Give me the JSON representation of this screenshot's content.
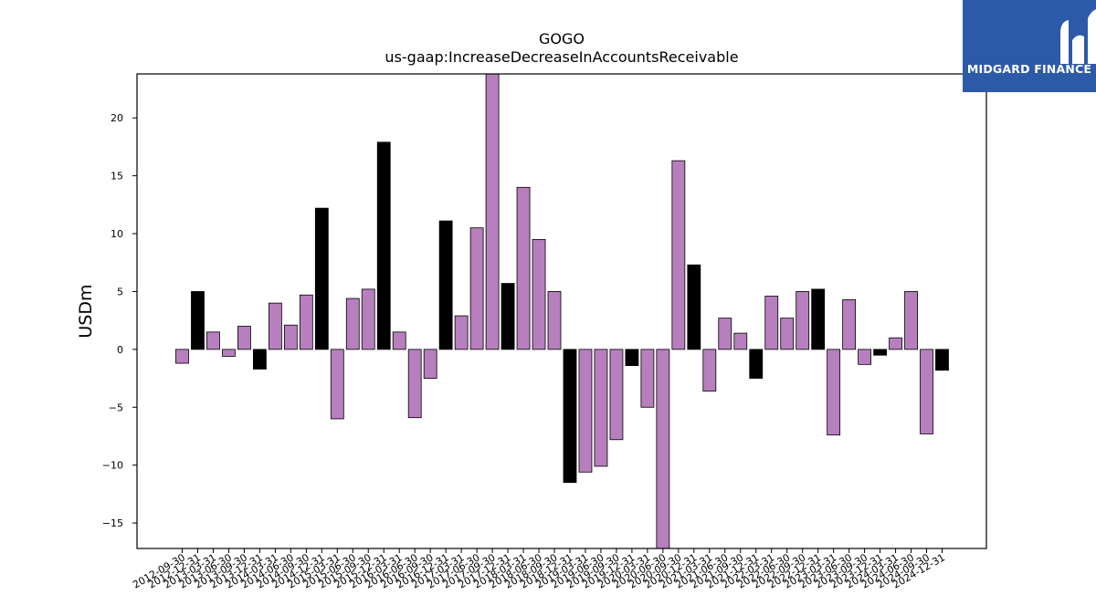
{
  "chart_data": {
    "type": "bar",
    "title": "GOGO",
    "subtitle": "us-gaap:IncreaseDecreaseInAccountsReceivable",
    "ylabel": "USDm",
    "xlabel": "",
    "ylim": [
      -17.2,
      23.8
    ],
    "yticks": [
      -15,
      -10,
      -5,
      0,
      5,
      10,
      15,
      20
    ],
    "grid": false,
    "categories": [
      "2012-09-30",
      "2012-12-31",
      "2013-03-31",
      "2013-06-30",
      "2013-09-30",
      "2013-12-31",
      "2014-03-31",
      "2014-06-30",
      "2014-09-30",
      "2014-12-31",
      "2015-03-31",
      "2015-06-30",
      "2015-09-30",
      "2015-12-31",
      "2016-03-31",
      "2016-06-30",
      "2016-09-30",
      "2016-12-31",
      "2017-03-31",
      "2017-06-30",
      "2017-09-30",
      "2017-12-31",
      "2018-03-31",
      "2018-06-30",
      "2018-09-30",
      "2018-12-31",
      "2019-03-31",
      "2019-06-30",
      "2019-09-30",
      "2019-12-31",
      "2020-03-31",
      "2020-06-30",
      "2020-09-30",
      "2020-12-31",
      "2021-03-31",
      "2021-06-30",
      "2021-09-30",
      "2021-12-31",
      "2022-03-31",
      "2022-06-30",
      "2022-09-30",
      "2022-12-31",
      "2023-03-31",
      "2023-06-30",
      "2023-09-30",
      "2023-12-31",
      "2024-03-31",
      "2024-06-30",
      "2024-09-30",
      "2024-12-31"
    ],
    "values": [
      -1.2,
      5.0,
      1.5,
      -0.6,
      2.0,
      -1.7,
      4.0,
      2.1,
      4.7,
      12.2,
      -6.0,
      4.4,
      5.2,
      17.9,
      1.5,
      -5.9,
      -2.5,
      11.1,
      2.9,
      10.5,
      23.8,
      5.7,
      14.0,
      9.5,
      5.0,
      -11.5,
      -10.6,
      -10.1,
      -7.8,
      -1.4,
      -5.0,
      -17.2,
      16.3,
      7.3,
      -3.6,
      2.7,
      1.4,
      -2.5,
      4.6,
      2.7,
      5.0,
      5.2,
      -7.4,
      4.3,
      -1.3,
      -0.5,
      1.0,
      5.0,
      -7.3,
      -1.8
    ],
    "q4_color": "#000000",
    "bar_color": "#b77fbd",
    "edge_color": "#000000"
  },
  "logo": {
    "text": "MIDGARD FINANCE",
    "background": "#2d5aa8"
  }
}
